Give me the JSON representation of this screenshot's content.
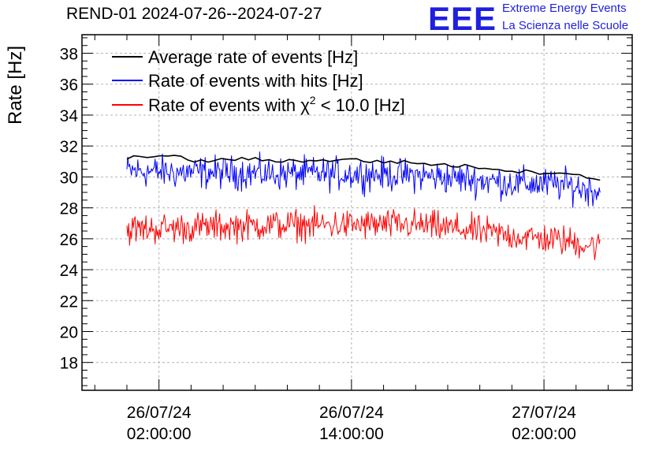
{
  "header": {
    "title": "REND-01 2024-07-26--2024-07-27",
    "logo_text": "EEE",
    "logo_line1": "Extreme Energy Events",
    "logo_line2": "La Scienza nelle Scuole"
  },
  "colors": {
    "average": "#000000",
    "hits": "#0000ff",
    "chi2": "#ff0000",
    "grid": "#b4b4b4",
    "logo": "#1f1fe0"
  },
  "chart_data": {
    "type": "line",
    "title": "REND-01 2024-07-26--2024-07-27",
    "ylabel": "Rate [Hz]",
    "xlabel": "",
    "ylim": [
      16.2,
      39.2
    ],
    "yticks": [
      18,
      20,
      22,
      24,
      26,
      28,
      30,
      32,
      34,
      36,
      38
    ],
    "xlim_hours": [
      -4.8,
      29.5
    ],
    "xticks": [
      {
        "hour": 0,
        "date": "26/07/24",
        "time": "02:00:00"
      },
      {
        "hour": 12,
        "date": "26/07/24",
        "time": "14:00:00"
      },
      {
        "hour": 24,
        "date": "27/07/24",
        "time": "02:00:00"
      }
    ],
    "grid": true,
    "legend_position": "top-left",
    "series": [
      {
        "name": "Average rate of events [Hz]",
        "label_main": "Average rate of events [Hz]",
        "color": "#000000",
        "noise": 0.0,
        "x_hours": [
          -2.0,
          -0.5,
          1.0,
          2.5,
          4.0,
          5.5,
          7.0,
          8.5,
          10.0,
          11.5,
          13.0,
          14.5,
          16.0,
          17.5,
          19.0,
          20.5,
          22.0,
          23.5,
          25.0,
          26.5,
          27.5
        ],
        "values": [
          31.2,
          31.4,
          31.3,
          31.0,
          31.1,
          31.2,
          31.0,
          31.1,
          31.0,
          31.2,
          31.0,
          31.0,
          30.9,
          30.8,
          30.7,
          30.6,
          30.4,
          30.3,
          30.3,
          30.0,
          29.8
        ]
      },
      {
        "name": "Rate of events with hits [Hz]",
        "label_main": "Rate of events with hits [Hz]",
        "color": "#0000ff",
        "noise": 0.8,
        "x_hours": [
          -2.0,
          1.0,
          4.0,
          7.0,
          10.0,
          13.0,
          16.0,
          19.0,
          22.0,
          25.0,
          27.5
        ],
        "values": [
          30.4,
          30.3,
          30.3,
          30.2,
          30.2,
          30.2,
          30.1,
          29.9,
          29.6,
          29.5,
          29.1
        ]
      },
      {
        "name": "Rate of events with χ² < 10.0 [Hz]",
        "label_main": "Rate of events with ",
        "label_chi": "χ",
        "label_sup": "2",
        "label_tail": " < 10.0 [Hz]",
        "color": "#ff0000",
        "noise": 0.75,
        "x_hours": [
          -2.0,
          1.0,
          4.0,
          7.0,
          10.0,
          13.0,
          16.0,
          19.0,
          22.0,
          25.0,
          27.5
        ],
        "values": [
          26.6,
          26.7,
          26.8,
          26.9,
          26.9,
          26.9,
          26.9,
          26.6,
          26.2,
          25.9,
          25.5
        ]
      }
    ]
  }
}
